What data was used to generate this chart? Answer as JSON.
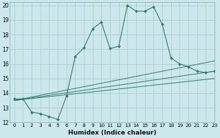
{
  "background_color": "#cce8ec",
  "grid_color": "#aacdd4",
  "line_color": "#2a7a6a",
  "xlabel": "Humidex (Indice chaleur)",
  "xlim": [
    -0.5,
    23
  ],
  "ylim": [
    12,
    20.2
  ],
  "xticks": [
    0,
    1,
    2,
    3,
    4,
    5,
    6,
    7,
    8,
    9,
    10,
    11,
    12,
    13,
    14,
    15,
    16,
    17,
    18,
    19,
    20,
    21,
    22,
    23
  ],
  "yticks": [
    12,
    13,
    14,
    15,
    16,
    17,
    18,
    19,
    20
  ],
  "main_series": {
    "x": [
      0,
      1,
      2,
      3,
      4,
      5,
      6,
      7,
      8,
      9,
      10,
      11,
      12,
      13,
      14,
      15,
      16,
      17,
      18,
      19,
      20,
      21,
      22,
      23
    ],
    "y": [
      13.6,
      13.6,
      12.7,
      12.6,
      12.4,
      12.2,
      13.8,
      16.5,
      17.1,
      18.4,
      18.85,
      17.05,
      17.2,
      20.0,
      19.6,
      19.6,
      19.9,
      18.7,
      16.4,
      16.0,
      15.8,
      15.5,
      15.4,
      15.5
    ]
  },
  "straight_lines": [
    {
      "x": [
        0,
        23
      ],
      "y": [
        13.5,
        16.2
      ]
    },
    {
      "x": [
        0,
        23
      ],
      "y": [
        13.5,
        15.5
      ]
    },
    {
      "x": [
        0,
        23
      ],
      "y": [
        13.5,
        15.0
      ]
    }
  ]
}
